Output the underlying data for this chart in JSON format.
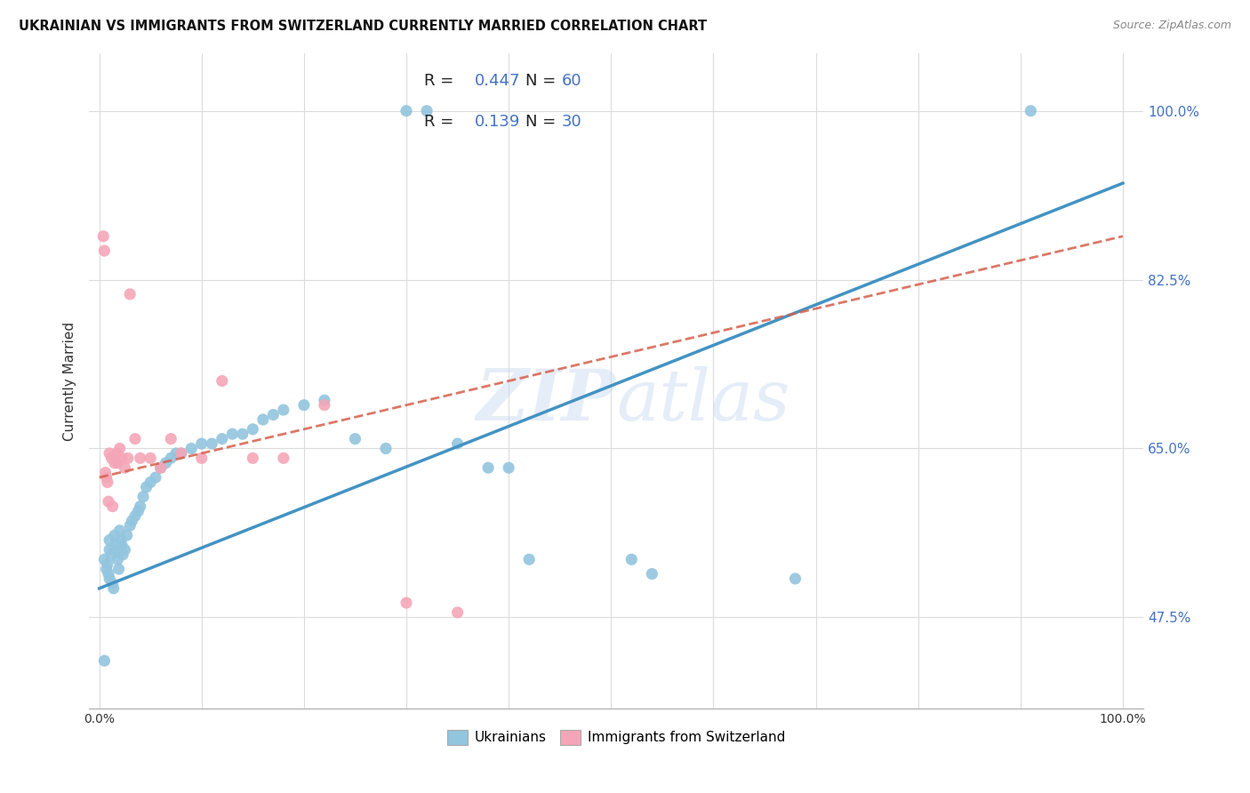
{
  "title": "UKRAINIAN VS IMMIGRANTS FROM SWITZERLAND CURRENTLY MARRIED CORRELATION CHART",
  "source": "Source: ZipAtlas.com",
  "ylabel": "Currently Married",
  "watermark": "ZIPatlas",
  "blue_R": 0.447,
  "blue_N": 60,
  "pink_R": 0.139,
  "pink_N": 30,
  "blue_color": "#92c5de",
  "pink_color": "#f4a6b8",
  "blue_line_color": "#4393c3",
  "pink_line_color": "#d6604d",
  "background_color": "#ffffff",
  "grid_color": "#d9d9d9",
  "blue_scatter_x": [
    0.005,
    0.007,
    0.008,
    0.009,
    0.01,
    0.01,
    0.01,
    0.012,
    0.013,
    0.014,
    0.015,
    0.016,
    0.017,
    0.018,
    0.019,
    0.02,
    0.021,
    0.022,
    0.023,
    0.025,
    0.027,
    0.03,
    0.032,
    0.035,
    0.038,
    0.04,
    0.043,
    0.046,
    0.05,
    0.055,
    0.06,
    0.065,
    0.07,
    0.075,
    0.08,
    0.09,
    0.1,
    0.11,
    0.12,
    0.13,
    0.14,
    0.15,
    0.16,
    0.17,
    0.18,
    0.2,
    0.22,
    0.25,
    0.28,
    0.3,
    0.32,
    0.35,
    0.38,
    0.4,
    0.42,
    0.52,
    0.54,
    0.68,
    0.91,
    0.005
  ],
  "blue_scatter_y": [
    0.535,
    0.525,
    0.53,
    0.52,
    0.515,
    0.545,
    0.555,
    0.54,
    0.51,
    0.505,
    0.56,
    0.55,
    0.545,
    0.535,
    0.525,
    0.565,
    0.555,
    0.55,
    0.54,
    0.545,
    0.56,
    0.57,
    0.575,
    0.58,
    0.585,
    0.59,
    0.6,
    0.61,
    0.615,
    0.62,
    0.63,
    0.635,
    0.64,
    0.645,
    0.645,
    0.65,
    0.655,
    0.655,
    0.66,
    0.665,
    0.665,
    0.67,
    0.68,
    0.685,
    0.69,
    0.695,
    0.7,
    0.66,
    0.65,
    1.0,
    1.0,
    0.655,
    0.63,
    0.63,
    0.535,
    0.535,
    0.52,
    0.515,
    1.0,
    0.43
  ],
  "pink_scatter_x": [
    0.004,
    0.005,
    0.006,
    0.007,
    0.008,
    0.009,
    0.01,
    0.012,
    0.013,
    0.015,
    0.017,
    0.018,
    0.02,
    0.022,
    0.025,
    0.028,
    0.03,
    0.035,
    0.04,
    0.05,
    0.06,
    0.07,
    0.08,
    0.1,
    0.12,
    0.15,
    0.18,
    0.22,
    0.3,
    0.35
  ],
  "pink_scatter_y": [
    0.87,
    0.855,
    0.625,
    0.62,
    0.615,
    0.595,
    0.645,
    0.64,
    0.59,
    0.635,
    0.645,
    0.635,
    0.65,
    0.64,
    0.63,
    0.64,
    0.81,
    0.66,
    0.64,
    0.64,
    0.63,
    0.66,
    0.645,
    0.64,
    0.72,
    0.64,
    0.64,
    0.695,
    0.49,
    0.48
  ],
  "blue_line_x": [
    0.0,
    1.0
  ],
  "blue_line_y": [
    0.505,
    0.925
  ],
  "pink_line_x": [
    0.0,
    0.4
  ],
  "pink_line_y": [
    0.62,
    0.72
  ],
  "ytick_vals": [
    0.475,
    0.65,
    0.825,
    1.0
  ],
  "ytick_labels": [
    "47.5%",
    "65.0%",
    "82.5%",
    "100.0%"
  ],
  "ylim": [
    0.38,
    1.06
  ],
  "xlim": [
    -0.01,
    1.02
  ]
}
